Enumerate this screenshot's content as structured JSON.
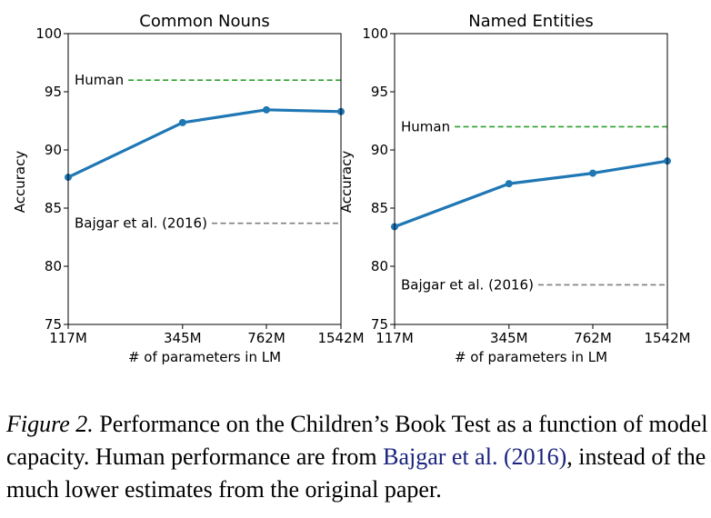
{
  "chart_data": [
    {
      "type": "line",
      "title": "Common Nouns",
      "xlabel": "# of parameters in LM",
      "ylabel": "Accuracy",
      "categories": [
        "117M",
        "345M",
        "762M",
        "1542M"
      ],
      "x_params_millions": [
        117,
        345,
        762,
        1542
      ],
      "x_scale": "log",
      "ylim": [
        75,
        100
      ],
      "yticks": [
        75,
        80,
        85,
        90,
        95,
        100
      ],
      "series": [
        {
          "values": [
            87.65,
            92.35,
            93.45,
            93.3
          ],
          "color": "#1f77b4"
        }
      ],
      "reference_lines": [
        {
          "name": "Human",
          "value": 96.0,
          "color": "#2ca02c"
        },
        {
          "name": "Bajgar et al. (2016)",
          "value": 83.7,
          "color": "#7f7f7f"
        }
      ],
      "grid": false,
      "legend": "none"
    },
    {
      "type": "line",
      "title": "Named Entities",
      "xlabel": "# of parameters in LM",
      "ylabel": "Accuracy",
      "categories": [
        "117M",
        "345M",
        "762M",
        "1542M"
      ],
      "x_params_millions": [
        117,
        345,
        762,
        1542
      ],
      "x_scale": "log",
      "ylim": [
        75,
        100
      ],
      "yticks": [
        75,
        80,
        85,
        90,
        95,
        100
      ],
      "series": [
        {
          "values": [
            83.4,
            87.1,
            88.0,
            89.05
          ],
          "color": "#1f77b4"
        }
      ],
      "reference_lines": [
        {
          "name": "Human",
          "value": 92.0,
          "color": "#2ca02c"
        },
        {
          "name": "Bajgar et al. (2016)",
          "value": 78.4,
          "color": "#7f7f7f"
        }
      ],
      "grid": false,
      "legend": "none"
    }
  ],
  "caption": {
    "label": "Figure 2.",
    "text_before": " Performance on the Children’s Book Test as a function of model capacity. Human performance are from ",
    "citation_authors": "Bajgar et al.",
    "citation_year": "(2016)",
    "text_after": ", instead of the much lower estimates from the original paper."
  }
}
